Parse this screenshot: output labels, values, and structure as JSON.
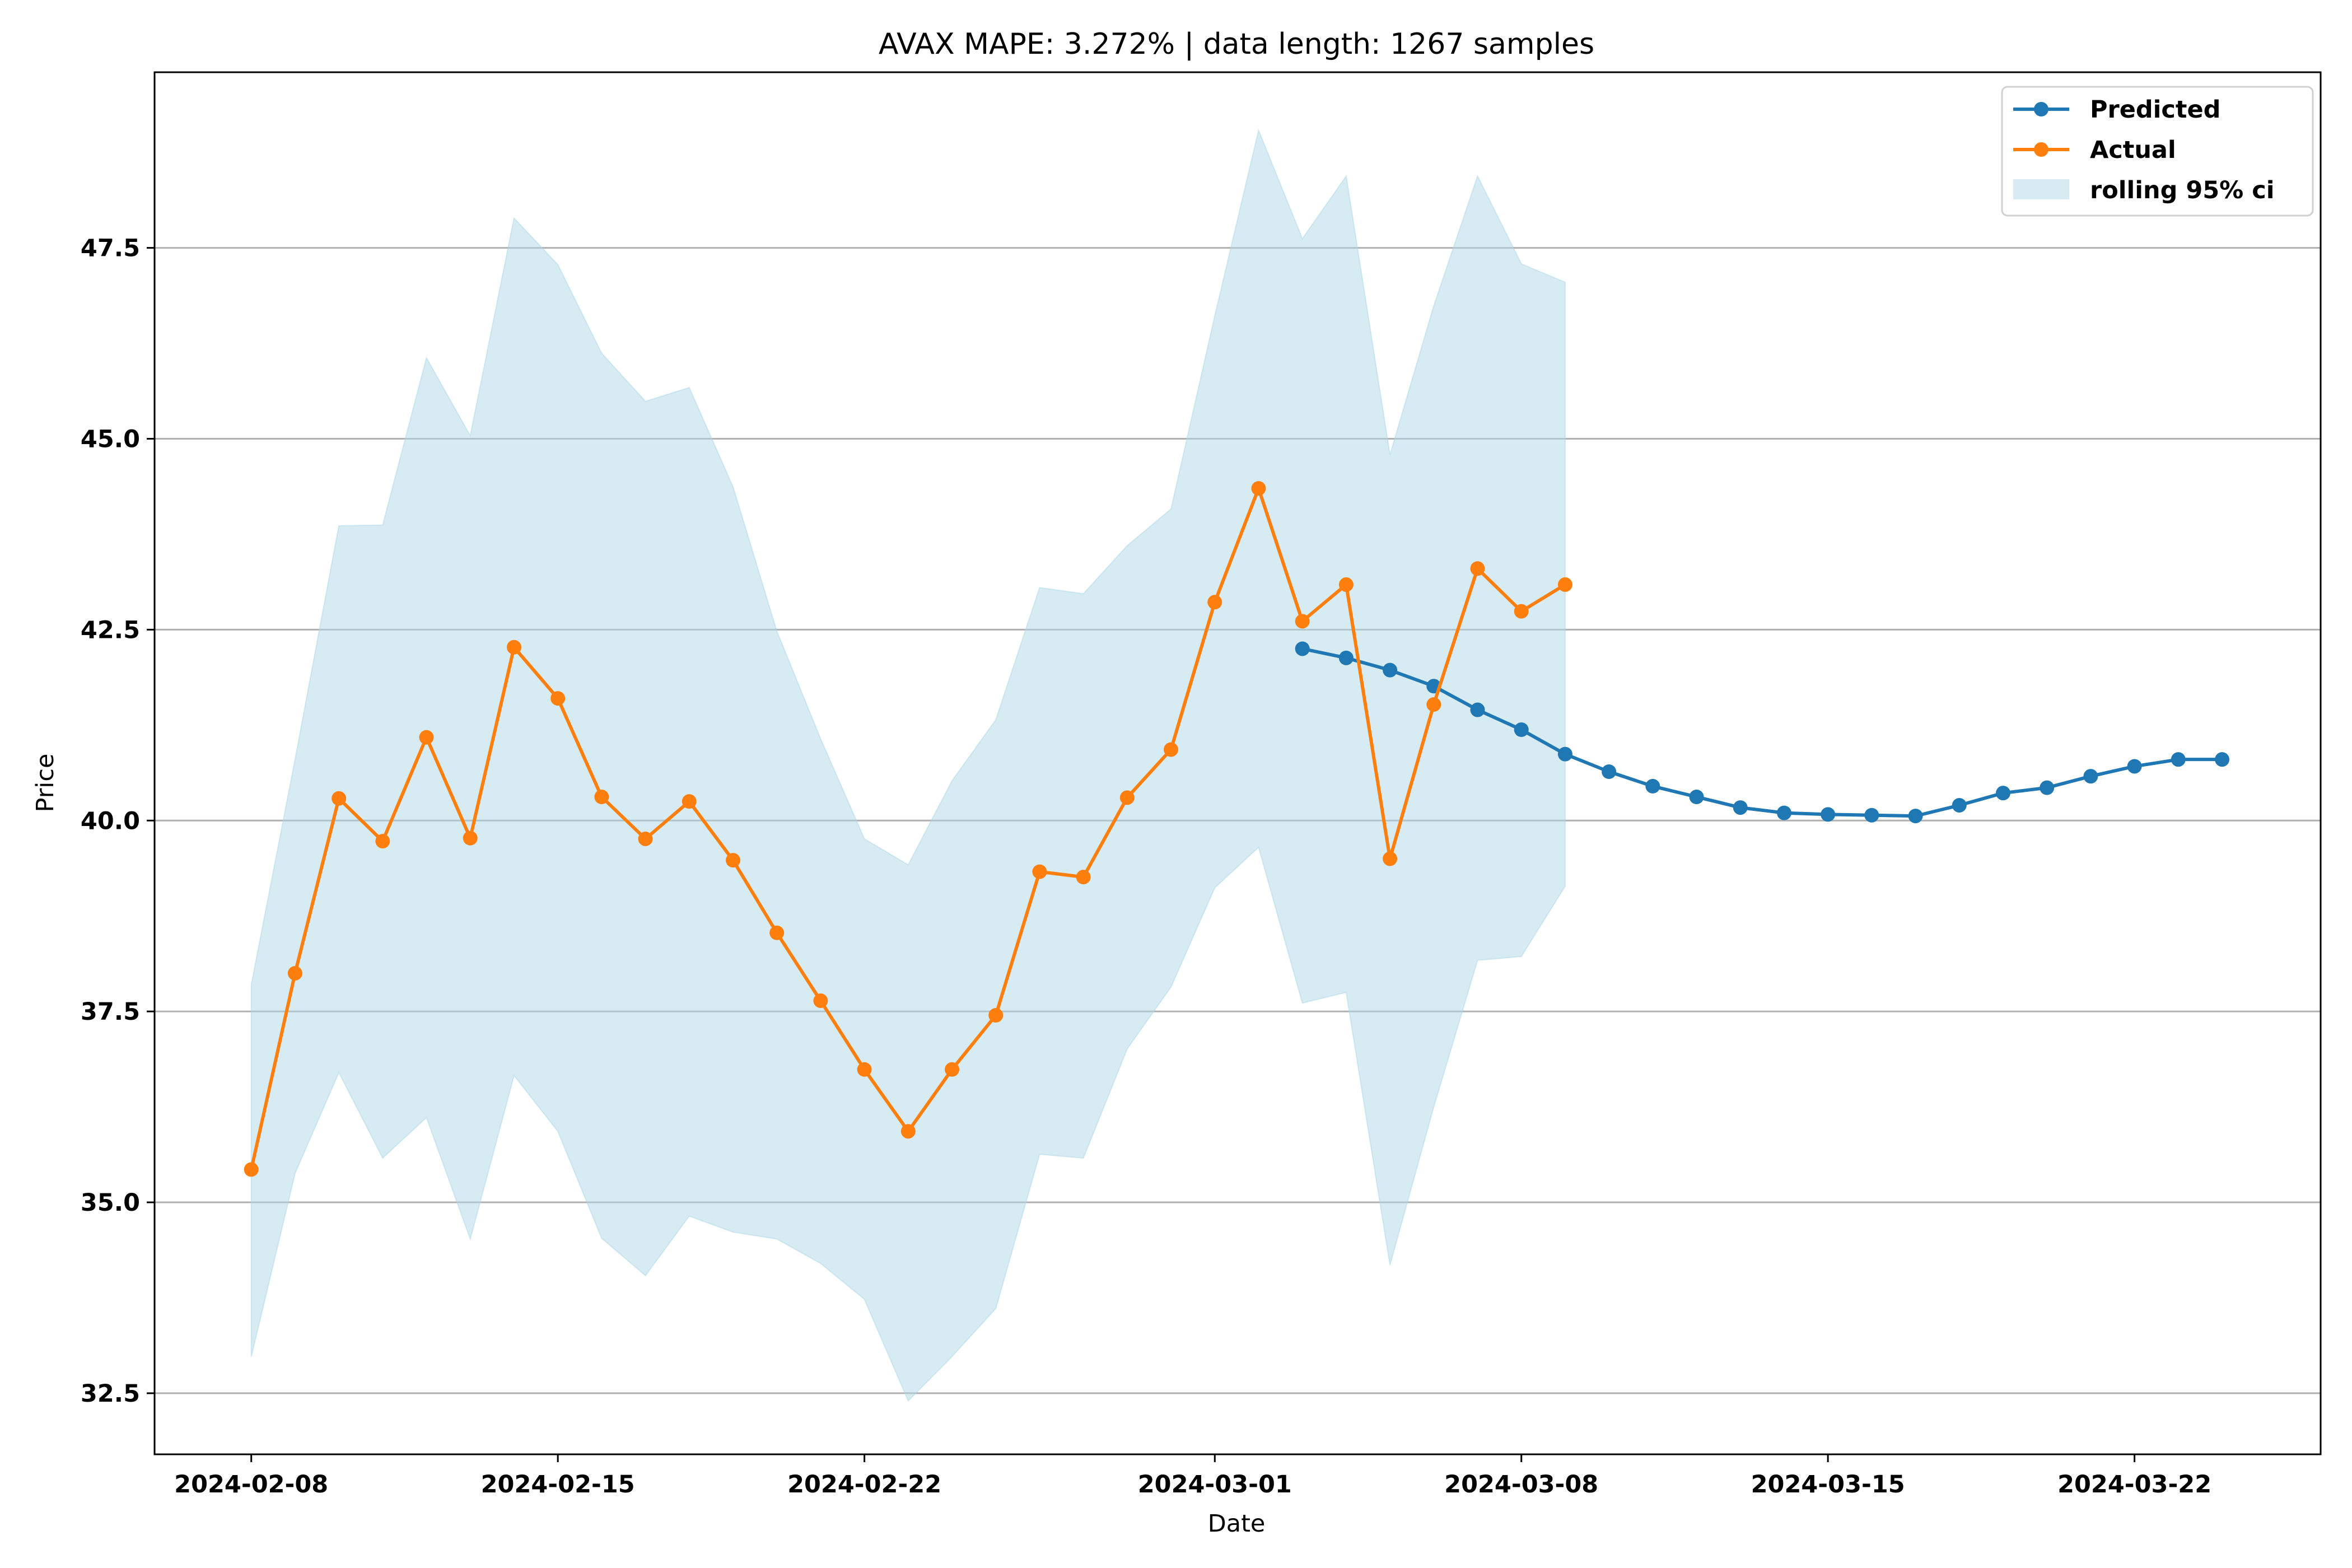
{
  "chart_data": {
    "type": "line",
    "title": "AVAX MAPE: 3.272% | data length: 1267 samples",
    "xlabel": "Date",
    "ylabel": "Price",
    "xlim": [
      "2024-02-05T19:00",
      "2024-03-26T06:00"
    ],
    "ylim": [
      31.7,
      49.8
    ],
    "xticks": [
      "2024-02-08",
      "2024-02-15",
      "2024-02-22",
      "2024-03-01",
      "2024-03-08",
      "2024-03-15",
      "2024-03-22"
    ],
    "yticks": [
      32.5,
      35.0,
      37.5,
      40.0,
      42.5,
      45.0,
      47.5
    ],
    "yticklabels": [
      "32.5",
      "35.0",
      "37.5",
      "40.0",
      "42.5",
      "45.0",
      "47.5"
    ],
    "grid": "horizontal",
    "legend_position": "top-right",
    "colors": {
      "predicted": "#1f77b4",
      "actual": "#ff7f0e",
      "ci": "#add8e6"
    },
    "series": [
      {
        "name": "Predicted",
        "marker": "circle",
        "x": [
          "2024-03-03",
          "2024-03-04",
          "2024-03-05",
          "2024-03-06",
          "2024-03-07",
          "2024-03-08",
          "2024-03-09",
          "2024-03-10",
          "2024-03-11",
          "2024-03-12",
          "2024-03-13",
          "2024-03-14",
          "2024-03-15",
          "2024-03-16",
          "2024-03-17",
          "2024-03-18",
          "2024-03-19",
          "2024-03-20",
          "2024-03-21",
          "2024-03-22",
          "2024-03-23",
          "2024-03-24"
        ],
        "y": [
          42.25,
          42.13,
          41.97,
          41.76,
          41.45,
          41.19,
          40.87,
          40.64,
          40.45,
          40.31,
          40.17,
          40.1,
          40.08,
          40.07,
          40.06,
          40.2,
          40.36,
          40.43,
          40.58,
          40.71,
          40.8,
          40.8
        ]
      },
      {
        "name": "Actual",
        "marker": "circle",
        "x": [
          "2024-02-08",
          "2024-02-09",
          "2024-02-10",
          "2024-02-11",
          "2024-02-12",
          "2024-02-13",
          "2024-02-14",
          "2024-02-15",
          "2024-02-16",
          "2024-02-17",
          "2024-02-18",
          "2024-02-19",
          "2024-02-20",
          "2024-02-21",
          "2024-02-22",
          "2024-02-23",
          "2024-02-24",
          "2024-02-25",
          "2024-02-26",
          "2024-02-27",
          "2024-02-28",
          "2024-02-29",
          "2024-03-01",
          "2024-03-02",
          "2024-03-03",
          "2024-03-04",
          "2024-03-05",
          "2024-03-06",
          "2024-03-07",
          "2024-03-08",
          "2024-03-09"
        ],
        "y": [
          35.43,
          38.0,
          40.29,
          39.73,
          41.09,
          39.77,
          42.27,
          41.6,
          40.31,
          39.76,
          40.25,
          39.48,
          38.53,
          37.64,
          36.74,
          35.93,
          36.74,
          37.45,
          39.33,
          39.26,
          40.3,
          40.93,
          42.86,
          44.35,
          42.61,
          43.09,
          39.5,
          41.52,
          43.3,
          42.74,
          43.09
        ]
      }
    ],
    "band": {
      "name": "rolling 95% ci",
      "x": [
        "2024-02-08",
        "2024-02-09",
        "2024-02-10",
        "2024-02-11",
        "2024-02-12",
        "2024-02-13",
        "2024-02-14",
        "2024-02-15",
        "2024-02-16",
        "2024-02-17",
        "2024-02-18",
        "2024-02-19",
        "2024-02-20",
        "2024-02-21",
        "2024-02-22",
        "2024-02-23",
        "2024-02-24",
        "2024-02-25",
        "2024-02-26",
        "2024-02-27",
        "2024-02-28",
        "2024-02-29",
        "2024-03-01",
        "2024-03-02",
        "2024-03-03",
        "2024-03-04",
        "2024-03-05",
        "2024-03-06",
        "2024-03-07",
        "2024-03-08",
        "2024-03-09"
      ],
      "upper": [
        37.85,
        40.8,
        43.86,
        43.87,
        46.06,
        45.04,
        47.89,
        47.28,
        46.12,
        45.49,
        45.67,
        44.37,
        42.48,
        41.07,
        39.76,
        39.42,
        40.52,
        41.32,
        43.05,
        42.97,
        43.6,
        44.08,
        46.61,
        49.04,
        47.62,
        48.44,
        44.79,
        46.74,
        48.44,
        47.29,
        47.05
      ],
      "lower": [
        32.98,
        35.38,
        36.7,
        35.58,
        36.11,
        34.52,
        36.66,
        35.93,
        34.53,
        34.04,
        34.82,
        34.61,
        34.52,
        34.2,
        33.73,
        32.4,
        32.98,
        33.61,
        35.63,
        35.58,
        37.01,
        37.82,
        39.12,
        39.65,
        37.61,
        37.75,
        34.18,
        36.25,
        38.17,
        38.22,
        39.14
      ]
    }
  }
}
